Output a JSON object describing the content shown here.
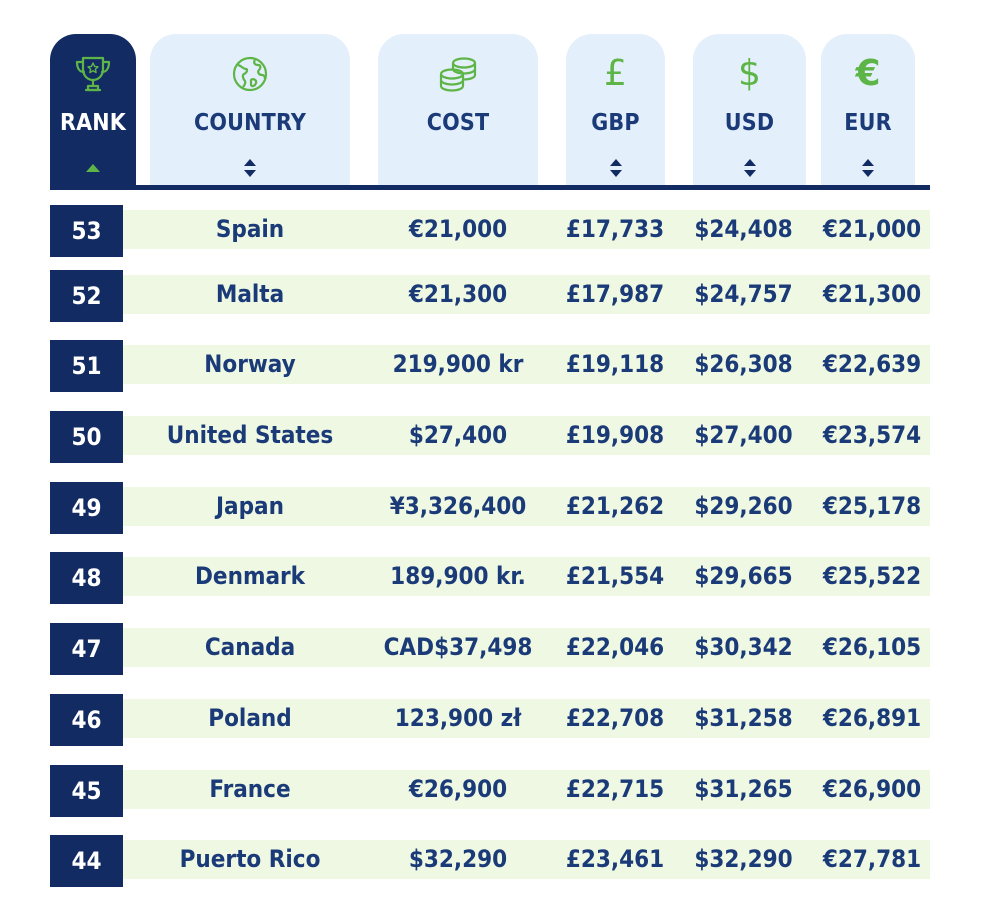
{
  "header": {
    "columns": [
      {
        "key": "rank",
        "label": "RANK",
        "icon": "trophy-icon",
        "sort": "ascending"
      },
      {
        "key": "country",
        "label": "COUNTRY",
        "icon": "globe-icon",
        "sort": "both"
      },
      {
        "key": "cost",
        "label": "COST",
        "icon": "coins-icon",
        "sort": "none"
      },
      {
        "key": "gbp",
        "label": "GBP",
        "icon": "pound-icon",
        "glyph": "£",
        "sort": "both"
      },
      {
        "key": "usd",
        "label": "USD",
        "icon": "dollar-icon",
        "glyph": "$",
        "sort": "both"
      },
      {
        "key": "eur",
        "label": "EUR",
        "icon": "euro-icon",
        "glyph": "€",
        "sort": "both"
      }
    ]
  },
  "rows": [
    {
      "rank": "53",
      "country": "Spain",
      "cost": "€21,000",
      "gbp": "£17,733",
      "usd": "$24,408",
      "eur": "€21,000"
    },
    {
      "rank": "52",
      "country": "Malta",
      "cost": "€21,300",
      "gbp": "£17,987",
      "usd": "$24,757",
      "eur": "€21,300"
    },
    {
      "rank": "51",
      "country": "Norway",
      "cost": "219,900 kr",
      "gbp": "£19,118",
      "usd": "$26,308",
      "eur": "€22,639"
    },
    {
      "rank": "50",
      "country": "United States",
      "cost": "$27,400",
      "gbp": "£19,908",
      "usd": "$27,400",
      "eur": "€23,574"
    },
    {
      "rank": "49",
      "country": "Japan",
      "cost": "¥3,326,400",
      "gbp": "£21,262",
      "usd": "$29,260",
      "eur": "€25,178"
    },
    {
      "rank": "48",
      "country": "Denmark",
      "cost": "189,900 kr.",
      "gbp": "£21,554",
      "usd": "$29,665",
      "eur": "€25,522"
    },
    {
      "rank": "47",
      "country": "Canada",
      "cost": "CAD$37,498",
      "gbp": "£22,046",
      "usd": "$30,342",
      "eur": "€26,105"
    },
    {
      "rank": "46",
      "country": "Poland",
      "cost": "123,900 zł",
      "gbp": "£22,708",
      "usd": "$31,258",
      "eur": "€26,891"
    },
    {
      "rank": "45",
      "country": "France",
      "cost": "€26,900",
      "gbp": "£22,715",
      "usd": "$31,265",
      "eur": "€26,900"
    },
    {
      "rank": "44",
      "country": "Puerto Rico",
      "cost": "$32,290",
      "gbp": "£23,461",
      "usd": "$32,290",
      "eur": "€27,781"
    }
  ],
  "colors": {
    "navy": "#132b63",
    "text": "#1b3a78",
    "header_bg": "#e3effb",
    "row_band": "#eef8e2",
    "icon_green": "#5eb547"
  }
}
